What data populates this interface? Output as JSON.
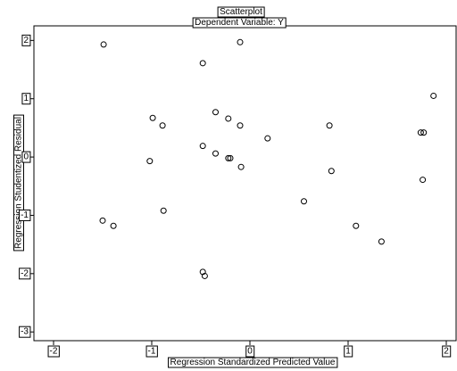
{
  "chart_data": {
    "type": "scatter",
    "title": "Scatterplot",
    "subtitle": "Dependent Variable: Y",
    "xlabel": "Regression Standardized Predicted Value",
    "ylabel": "Regression Studentized Residual",
    "xlim": [
      -2.2,
      2.1
    ],
    "ylim": [
      -3.15,
      2.25
    ],
    "xticks": [
      -2,
      -1,
      0,
      1,
      2
    ],
    "yticks": [
      -3,
      -2,
      -1,
      0,
      1,
      2
    ],
    "xtick_labels": [
      "-2",
      "-1",
      "0",
      "1",
      "2"
    ],
    "ytick_labels": [
      "-3",
      "-2",
      "-1",
      "0",
      "1",
      "2"
    ],
    "grid": false,
    "marker": "hollow-circle",
    "colors": {
      "marker": "#000000",
      "axes": "#000000",
      "background": "#ffffff"
    },
    "x": [
      -1.49,
      -0.48,
      -0.1,
      1.87,
      -0.99,
      -0.89,
      -0.35,
      -0.22,
      -0.1,
      0.18,
      0.81,
      1.74,
      1.77,
      -0.48,
      -0.35,
      -0.22,
      -0.2,
      -1.02,
      -0.09,
      0.83,
      1.76,
      0.55,
      -0.88,
      -1.5,
      -1.39,
      1.08,
      1.34,
      -0.48,
      -0.46
    ],
    "y": [
      1.93,
      1.61,
      1.97,
      1.05,
      0.67,
      0.54,
      0.77,
      0.66,
      0.54,
      0.32,
      0.54,
      0.42,
      0.42,
      0.19,
      0.06,
      -0.02,
      -0.02,
      -0.07,
      -0.17,
      -0.24,
      -0.39,
      -0.76,
      -0.92,
      -1.09,
      -1.18,
      -1.18,
      -1.45,
      -1.97,
      -2.04
    ]
  }
}
